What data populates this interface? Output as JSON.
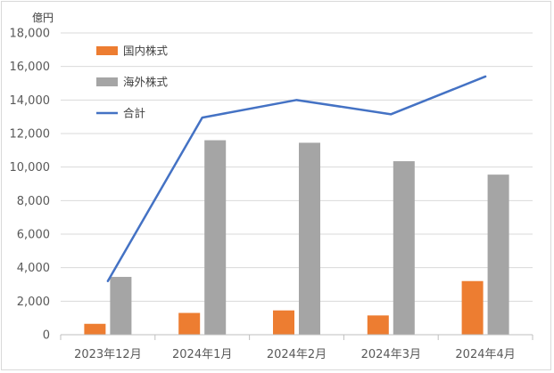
{
  "chart_data": {
    "type": "bar",
    "unit_label": "億円",
    "categories": [
      "2023年12月",
      "2024年1月",
      "2024年2月",
      "2024年3月",
      "2024年4月"
    ],
    "ylim": [
      0,
      18000
    ],
    "yticks": [
      0,
      2000,
      4000,
      6000,
      8000,
      10000,
      12000,
      14000,
      16000,
      18000
    ],
    "ytick_labels": [
      "0",
      "2,000",
      "4,000",
      "6,000",
      "8,000",
      "10,000",
      "12,000",
      "14,000",
      "16,000",
      "18,000"
    ],
    "grid": true,
    "legend_position": "top-left",
    "series": [
      {
        "name": "国内株式",
        "kind": "bar",
        "color": "#ed7d31",
        "values": [
          650,
          1300,
          1450,
          1150,
          3200
        ]
      },
      {
        "name": "海外株式",
        "kind": "bar",
        "color": "#a5a5a5",
        "values": [
          3450,
          11600,
          11450,
          10350,
          9550
        ]
      },
      {
        "name": "合計",
        "kind": "line",
        "color": "#4472c4",
        "values": [
          3200,
          12950,
          14000,
          13150,
          15400
        ]
      }
    ]
  }
}
